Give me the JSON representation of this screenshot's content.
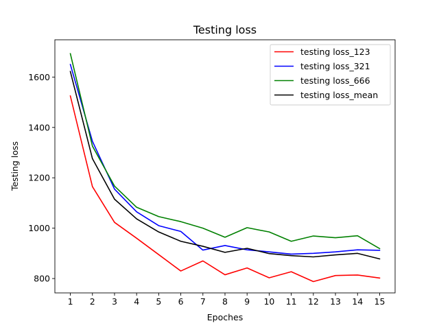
{
  "chart_data": {
    "type": "line",
    "title": "Testing loss",
    "xlabel": "Epoches",
    "ylabel": "Testing loss",
    "x": [
      1,
      2,
      3,
      4,
      5,
      6,
      7,
      8,
      9,
      10,
      11,
      12,
      13,
      14,
      15
    ],
    "xlim": [
      0.3,
      15.7
    ],
    "ylim": [
      743,
      1748
    ],
    "xticks": [
      1,
      2,
      3,
      4,
      5,
      6,
      7,
      8,
      9,
      10,
      11,
      12,
      13,
      14,
      15
    ],
    "yticks": [
      800,
      1000,
      1200,
      1400,
      1600
    ],
    "grid": false,
    "legend_position": "top-right",
    "series": [
      {
        "name": "testing loss_123",
        "color": "#ff0000",
        "values": [
          1525,
          1165,
          1023,
          960,
          895,
          830,
          870,
          815,
          842,
          803,
          827,
          788,
          812,
          814,
          802
        ]
      },
      {
        "name": "testing loss_321",
        "color": "#0000ff",
        "values": [
          1650,
          1345,
          1155,
          1065,
          1010,
          987,
          913,
          931,
          914,
          906,
          897,
          900,
          906,
          914,
          912
        ]
      },
      {
        "name": "testing loss_666",
        "color": "#008000",
        "values": [
          1693,
          1326,
          1167,
          1083,
          1046,
          1026,
          1000,
          964,
          1002,
          985,
          948,
          969,
          962,
          970,
          919
        ]
      },
      {
        "name": "testing loss_mean",
        "color": "#000000",
        "values": [
          1622,
          1276,
          1115,
          1037,
          985,
          948,
          928,
          904,
          920,
          899,
          891,
          886,
          894,
          900,
          878
        ]
      }
    ]
  }
}
